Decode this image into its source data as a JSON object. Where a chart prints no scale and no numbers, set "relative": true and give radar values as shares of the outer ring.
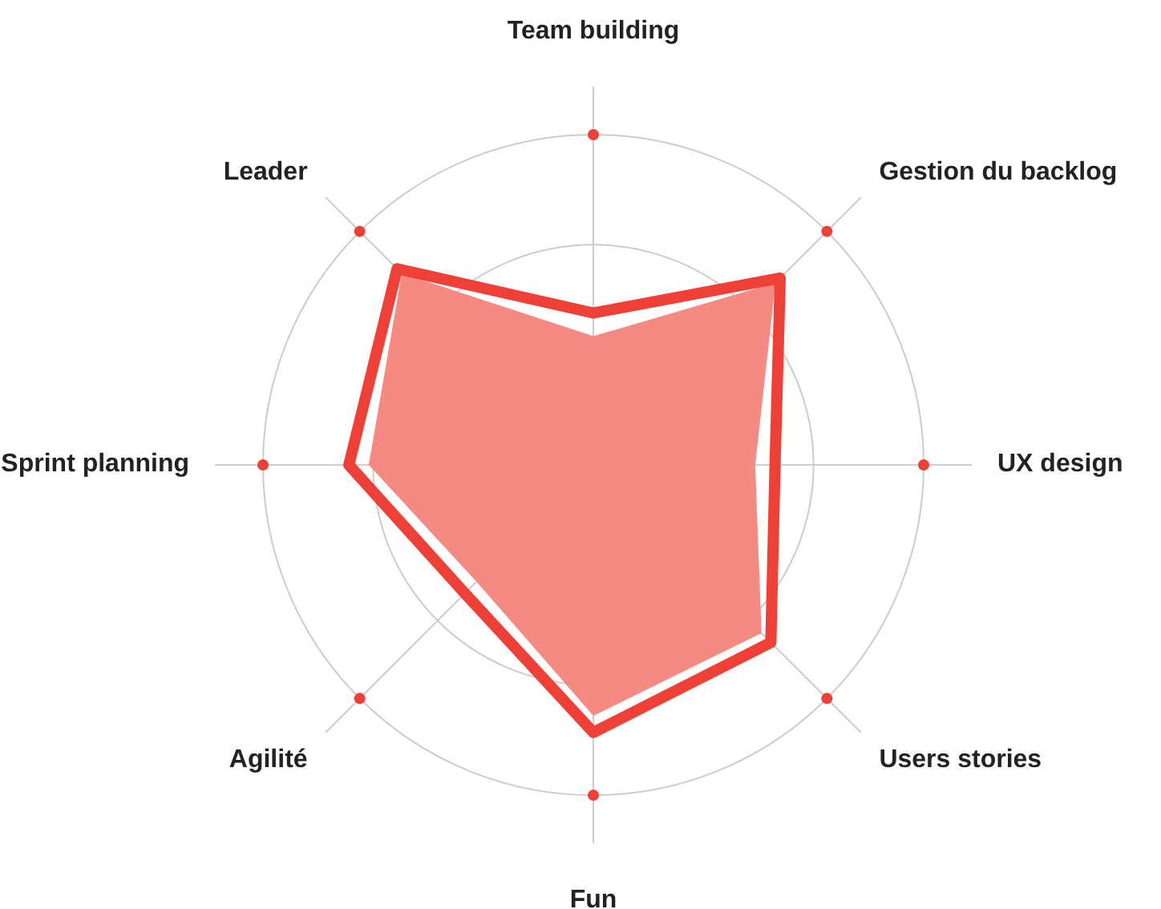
{
  "chart_data": {
    "type": "radar",
    "relative": true,
    "grid": true,
    "categories": [
      "Team building",
      "Gestion du backlog",
      "UX design",
      "Users stories",
      "Fun",
      "Agilité",
      "Sprint planning",
      "Leader"
    ],
    "series": [
      {
        "line_style": "none",
        "color": "#f48a82",
        "values": [
          0.39,
          0.78,
          0.49,
          0.72,
          0.76,
          0.5,
          0.68,
          0.82
        ]
      },
      {
        "line_style": "solid",
        "color": "#ee4037",
        "values": [
          0.46,
          0.8,
          0.55,
          0.76,
          0.81,
          0.55,
          0.74,
          0.84
        ]
      }
    ]
  }
}
